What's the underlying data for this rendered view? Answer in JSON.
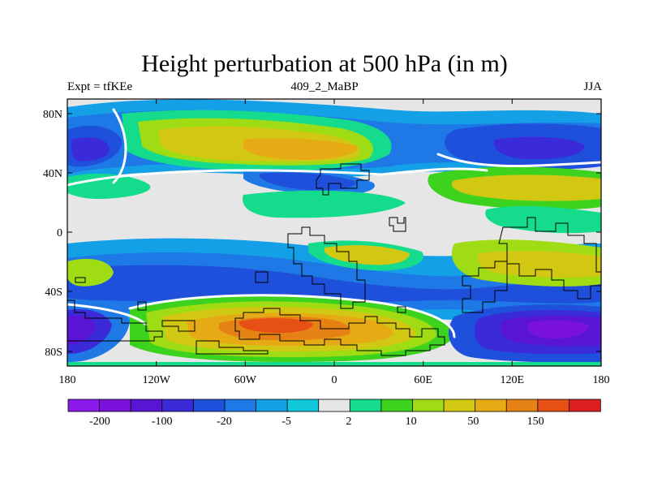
{
  "header": {
    "title": "Height perturbation at 500 hPa (in m)",
    "left_label": "Expt = tfKEe",
    "center_label": "409_2_MaBP",
    "right_label": "JJA"
  },
  "map": {
    "projection": "cylindrical-equidistant",
    "x_ticks": [
      "180",
      "120W",
      "60W",
      "0",
      "60E",
      "120E",
      "180"
    ],
    "y_ticks": [
      "80N",
      "40N",
      "0",
      "40S",
      "80S"
    ]
  },
  "colorbar": {
    "colors": [
      "#8c1aeb",
      "#7a12dc",
      "#5a14d4",
      "#3a2ad8",
      "#1e50dc",
      "#1e78e6",
      "#14a0e6",
      "#14c8dc",
      "#e6e6e6",
      "#14dc8c",
      "#3cd21e",
      "#a0dc14",
      "#d2c814",
      "#e6aa14",
      "#e68214",
      "#e65014",
      "#dc1e1e"
    ],
    "labels": [
      "-200",
      "-100",
      "-20",
      "-5",
      "2",
      "10",
      "50",
      "150"
    ]
  }
}
